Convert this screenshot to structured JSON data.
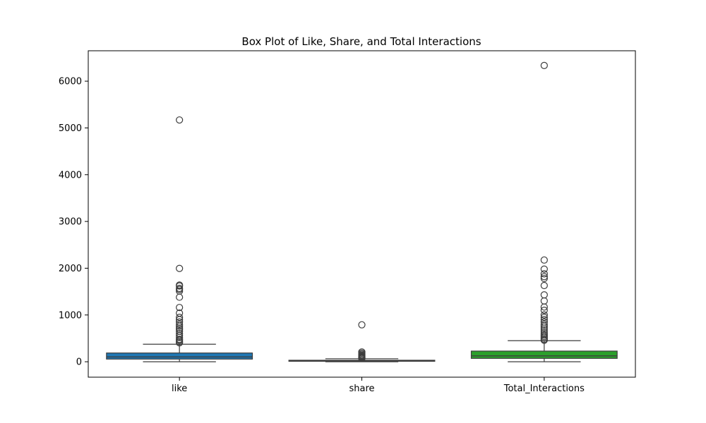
{
  "chart_data": {
    "type": "box",
    "title": "Box Plot of Like, Share, and Total Interactions",
    "xlabel": "",
    "ylabel": "",
    "categories": [
      "like",
      "share",
      "Total_Interactions"
    ],
    "ylim": [
      -330,
      6650
    ],
    "yticks": [
      0,
      1000,
      2000,
      3000,
      4000,
      5000,
      6000
    ],
    "grid": false,
    "colors": {
      "like": "#1f77b4",
      "share": "#ff7f0e",
      "Total_Interactions": "#2ca02c",
      "edge": "#3d3d3d"
    },
    "boxes": [
      {
        "name": "like",
        "whisker_low": 0,
        "q1": 57,
        "median": 102,
        "q3": 187,
        "whisker_high": 375,
        "outliers": [
          5170,
          1995,
          1640,
          1620,
          1570,
          1545,
          1510,
          1380,
          1160,
          1040,
          950,
          900,
          850,
          800,
          760,
          720,
          690,
          650,
          600,
          560,
          520,
          480,
          460,
          430,
          405
        ]
      },
      {
        "name": "share",
        "whisker_low": 0,
        "q1": 10,
        "median": 19,
        "q3": 32,
        "whisker_high": 65,
        "outliers": [
          790,
          210,
          185,
          160,
          140,
          125,
          110,
          100,
          90,
          80,
          72
        ]
      },
      {
        "name": "Total_Interactions",
        "whisker_low": 0,
        "q1": 72,
        "median": 125,
        "q3": 228,
        "whisker_high": 450,
        "outliers": [
          6335,
          2175,
          1980,
          1880,
          1820,
          1780,
          1630,
          1430,
          1300,
          1170,
          1100,
          1000,
          950,
          900,
          850,
          800,
          760,
          720,
          680,
          640,
          600,
          570,
          540,
          510,
          480,
          460
        ]
      }
    ]
  }
}
